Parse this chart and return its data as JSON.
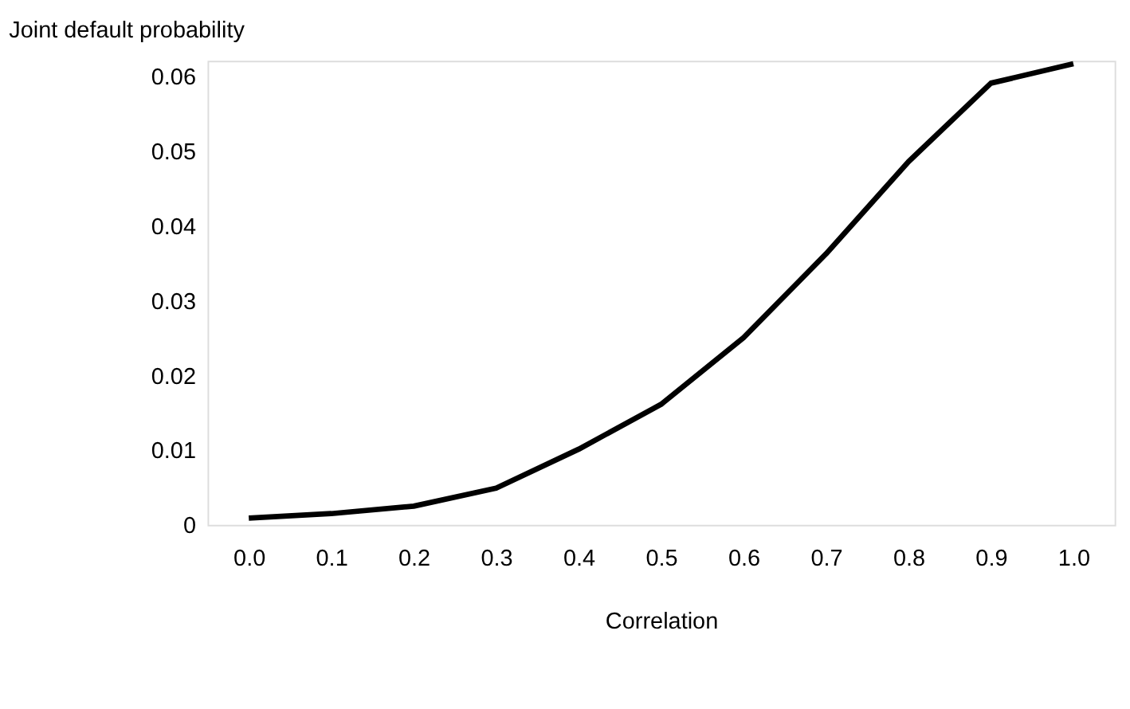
{
  "chart_data": {
    "type": "line",
    "ylabel": "Joint default probability",
    "xlabel": "Correlation",
    "categories": [
      "0.0",
      "0.1",
      "0.2",
      "0.3",
      "0.4",
      "0.5",
      "0.6",
      "0.7",
      "0.8",
      "0.9",
      "1.0"
    ],
    "series": [
      {
        "color": "#000000",
        "values": [
          0.0009,
          0.0015,
          0.0025,
          0.0049,
          0.0101,
          0.0161,
          0.025,
          0.0362,
          0.0485,
          0.059,
          0.0616
        ]
      }
    ],
    "ylim": [
      0,
      0.062
    ],
    "yticks": [
      {
        "value": 0,
        "label": "0"
      },
      0.01,
      0.02,
      0.03,
      0.04,
      0.05,
      0.06
    ],
    "grid": false,
    "marker": "none",
    "line_style": "solid"
  }
}
